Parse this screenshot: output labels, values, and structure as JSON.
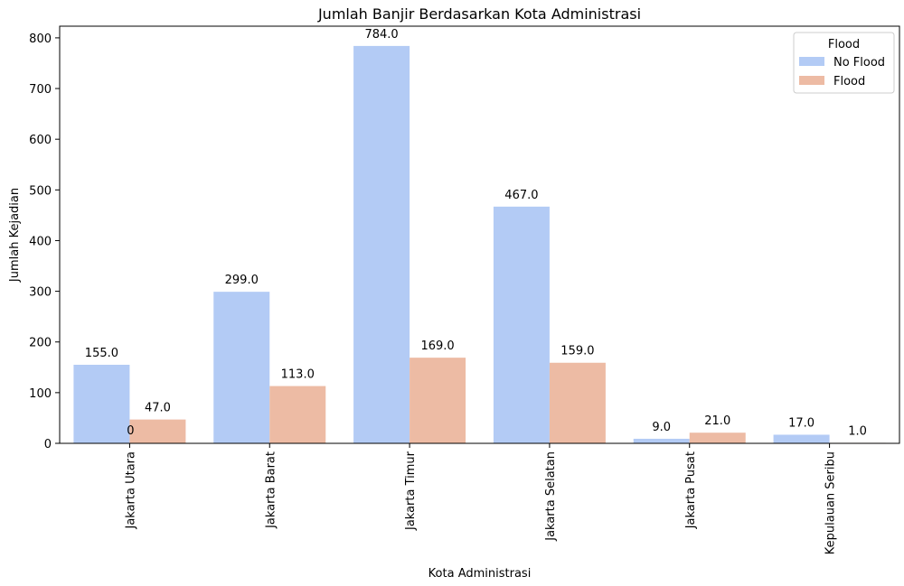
{
  "chart_data": {
    "type": "bar",
    "title": "Jumlah Banjir Berdasarkan Kota Administrasi",
    "xlabel": "Kota Administrasi",
    "ylabel": "Jumlah Kejadian",
    "ylim": [
      0,
      823
    ],
    "yticks": [
      "0",
      "100",
      "200",
      "300",
      "400",
      "500",
      "600",
      "700",
      "800"
    ],
    "categories": [
      "Jakarta Utara",
      "Jakarta Barat",
      "Jakarta Timur",
      "Jakarta Selatan",
      "Jakarta Pusat",
      "Kepulauan Seribu"
    ],
    "series": [
      {
        "name": "No Flood",
        "color": "#b3cbf5",
        "values": [
          155,
          299,
          784,
          467,
          9,
          17
        ],
        "labels": [
          "155.0",
          "299.0",
          "784.0",
          "467.0",
          "9.0",
          "17.0"
        ]
      },
      {
        "name": "Flood",
        "color": "#edbba4",
        "values": [
          47,
          113,
          169,
          159,
          21,
          1
        ],
        "labels": [
          "47.0",
          "113.0",
          "169.0",
          "159.0",
          "21.0",
          "1.0"
        ]
      }
    ],
    "extra_annotation": "0",
    "legend": {
      "title": "Flood",
      "placement": "top-right"
    },
    "grid": false
  }
}
